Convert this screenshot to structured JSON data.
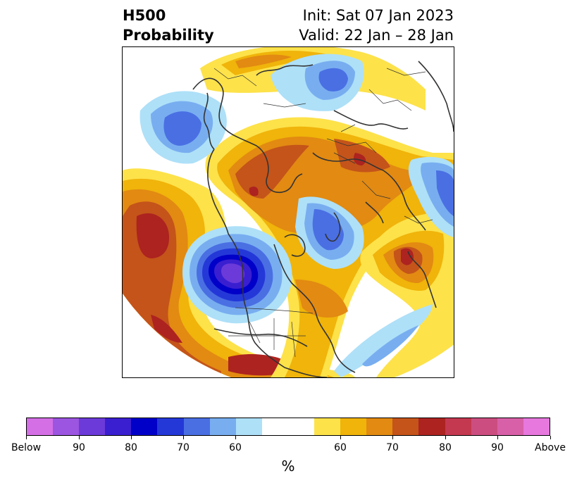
{
  "title": {
    "left_line1": "H500",
    "left_line2": "Probability",
    "init": "Init: Sat 07 Jan 2023",
    "valid": "Valid: 22 Jan – 28 Jan"
  },
  "colorbar": {
    "unit_label": "%",
    "tick_labels": [
      "Below",
      "90",
      "80",
      "70",
      "60",
      "60",
      "70",
      "80",
      "90",
      "Above"
    ],
    "colors": [
      "#d46fe6",
      "#9b55e0",
      "#6b3ad8",
      "#3a1fd0",
      "#0000c8",
      "#2438d8",
      "#4a6fe3",
      "#78aef0",
      "#aee0f8",
      "#ffffff",
      "#ffffff",
      "#fde24a",
      "#f0b40a",
      "#e28a12",
      "#c4541a",
      "#ad2320",
      "#c43850",
      "#cc4e80",
      "#d860a8",
      "#e678de"
    ]
  },
  "map": {
    "projection": "north-polar-stereographic",
    "field": "500 hPa height anomaly probability",
    "palette": {
      "above_60": "#fde24a",
      "above_65": "#f0b40a",
      "above_70": "#e28a12",
      "above_75": "#c4541a",
      "above_80": "#ad2320",
      "below_60": "#aee0f8",
      "below_65": "#78aef0",
      "below_70": "#4a6fe3",
      "below_75": "#2438d8",
      "below_80": "#0000c8",
      "below_85": "#3a1fd0",
      "below_90": "#6b3ad8",
      "coastline": "#333333"
    }
  }
}
